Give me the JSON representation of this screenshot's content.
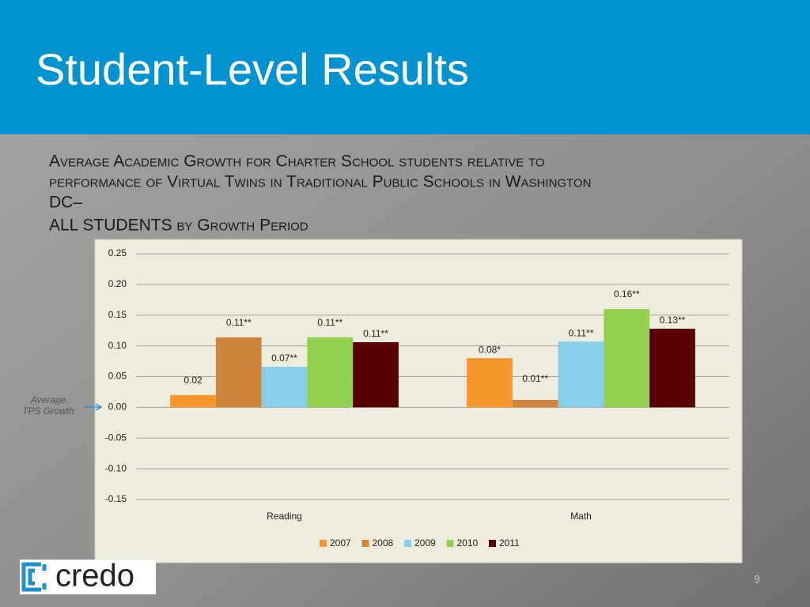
{
  "header": {
    "title": "Student-Level Results"
  },
  "chart_data": {
    "type": "bar",
    "subtitle_lines": [
      "Average Academic Growth for Charter School students relative to",
      "performance of Virtual Twins in Traditional Public Schools in Washington",
      "DC–",
      "ALL STUDENTS by Growth Period"
    ],
    "categories": [
      "Reading",
      "Math"
    ],
    "series": [
      {
        "name": "2007",
        "color": "#f7962f",
        "values": [
          0.02,
          0.08
        ],
        "value_labels": [
          "0.02",
          "0.08*"
        ]
      },
      {
        "name": "2008",
        "color": "#cf853c",
        "values": [
          0.114,
          0.012
        ],
        "value_labels": [
          "0.11**",
          "0.01**"
        ]
      },
      {
        "name": "2009",
        "color": "#87ceeb",
        "values": [
          0.066,
          0.107
        ],
        "value_labels": [
          "0.07**",
          "0.11**"
        ]
      },
      {
        "name": "2010",
        "color": "#92d050",
        "values": [
          0.114,
          0.16
        ],
        "value_labels": [
          "0.11**",
          "0.16**"
        ]
      },
      {
        "name": "2011",
        "color": "#560000",
        "values": [
          0.106,
          0.128
        ],
        "value_labels": [
          "0.11**",
          "0.13**"
        ]
      }
    ],
    "ylim": [
      -0.15,
      0.25
    ],
    "yticks": [
      -0.15,
      {
        "value": -0.1,
        "label": "-0.10"
      },
      -0.05,
      {
        "value": 0,
        "label": "0.00"
      },
      0.05,
      {
        "value": 0.1,
        "label": "0.10"
      },
      0.15,
      {
        "value": 0.2,
        "label": "0.20"
      },
      0.25
    ],
    "grid": true,
    "legend": "bottom",
    "annotation_lines": [
      "Average",
      "TPS Growth"
    ]
  },
  "footer": {
    "logo": "credo",
    "page": "9"
  }
}
